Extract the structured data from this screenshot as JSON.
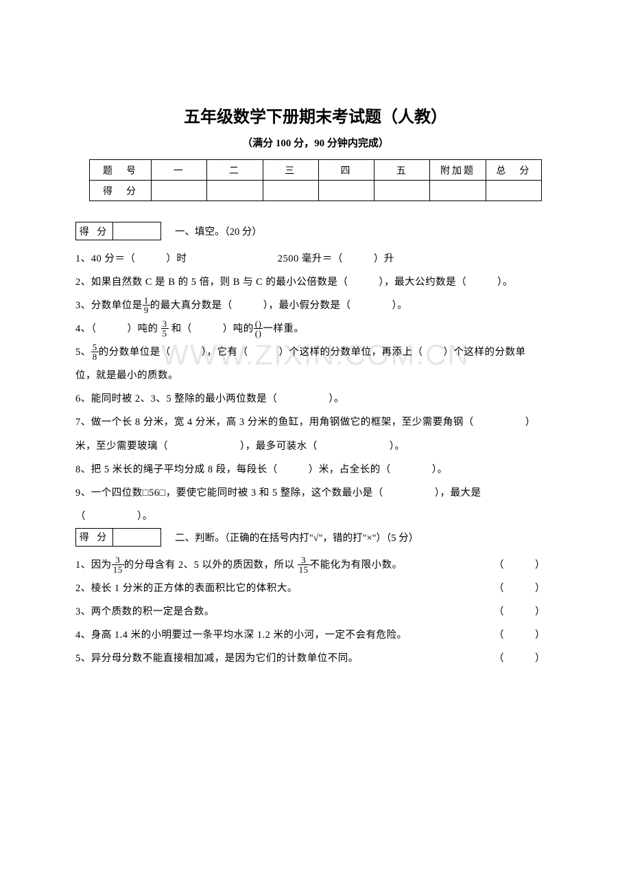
{
  "title": "五年级数学下册期末考试题（人教）",
  "subtitle": "（满分 100 分，90 分钟内完成）",
  "scoreTable": {
    "row1": [
      "题　号",
      "一",
      "二",
      "三",
      "四",
      "五",
      "附加题",
      "总　分"
    ],
    "row2Label": "得　分"
  },
  "defenLabel": "得 分",
  "section1": {
    "title": "一、填空。（20 分）",
    "q1a": "1、40 分＝（　　　）时",
    "q1b": "2500 毫升＝（　　　）升",
    "q2": "2、如果自然数 C 是 B 的 5 倍，则 B 与 C 的最小公倍数是（　　　），最大公约数是（　　　）。",
    "q3a": "3、分数单位是",
    "q3frac": {
      "num": "1",
      "den": "9"
    },
    "q3b": "的最大真分数是（　　　），最小假分数是（　　　　）。",
    "q4a": "4、（　　　）吨的 ",
    "q4frac1": {
      "num": "3",
      "den": "5"
    },
    "q4b": " 和（　　　）吨的",
    "q4frac2": {
      "num": "()",
      "den": "()"
    },
    "q4c": "一样重。",
    "q5a": "5、",
    "q5frac": {
      "num": "5",
      "den": "8"
    },
    "q5b": "的分数单位是（　　　），它有（　　　）个这样的分数单位，再添上（　　）个这样的分数单",
    "q5c": "位，就是最小的质数。",
    "q6": "6、能同时被 2、3、5 整除的最小两位数是（　　　　　）。",
    "q7a": "7、做一个长 8 分米，宽 4 分米，高 3 分米的鱼缸，用角钢做它的框架，至少需要角钢（　　　　　）",
    "q7b": "米，至少需要玻璃（　　　　　　　），最多可装水（　　　　　　　）。",
    "q8": "8、把 5 米长的绳子平均分成 8 段，每段长（　　　）米，占全长的（　　　　）。",
    "q9a": "9、一个四位数□56□，要使它能同时被 3 和 5 整除，这个数最小是（　　　　　），最大是",
    "q9b": "（　　　　　）。"
  },
  "section2": {
    "title": "二、判断。（正确的在括号内打\"√\"，错的打\"×\"）（5 分）",
    "q1a": "1、因为",
    "q1frac": {
      "num": "3",
      "den": "15"
    },
    "q1b": "的分母含有 2、5 以外的质因数，所以 ",
    "q1frac2": {
      "num": "3",
      "den": "15"
    },
    "q1c": "不能化为有限小数。",
    "q1mark": "（　　　）",
    "q2": "2、棱长 1 分米的正方体的表面积比它的体积大。",
    "q2mark": "（　　　）",
    "q3": "3、两个质数的积一定是合数。",
    "q3mark": "（　　　）",
    "q4": "4、身高 1.4 米的小明要过一条平均水深 1.2 米的小河，一定不会有危险。",
    "q4mark": "（　　　）",
    "q5": "5、异分母分数不能直接相加减，是因为它们的计数单位不同。",
    "q5mark": "（　　　）"
  },
  "watermark": "WWW.ZIXIN.COM.CN"
}
